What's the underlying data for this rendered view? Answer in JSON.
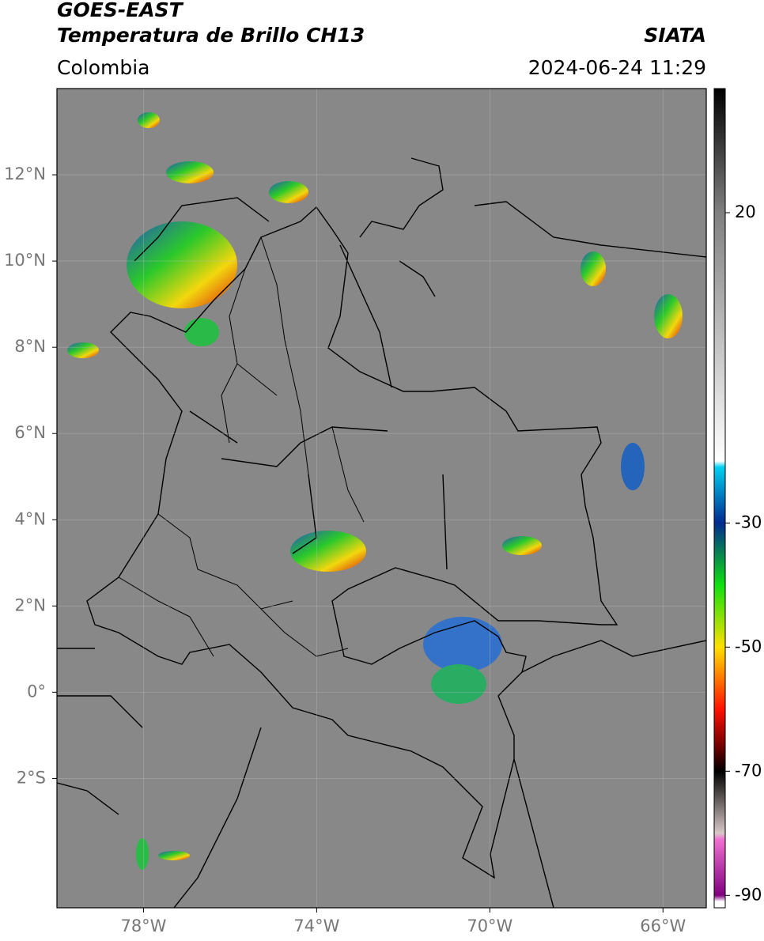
{
  "header": {
    "title": "GOES-EAST",
    "subtitle": "Temperatura de Brillo CH13",
    "region": "Colombia",
    "source": "SIATA",
    "datetime": "2024-06-24 11:29"
  },
  "map": {
    "xlim": [
      -80,
      -65
    ],
    "ylim": [
      -5,
      14
    ],
    "xticks": [
      {
        "value": -78,
        "label": "78°W"
      },
      {
        "value": -74,
        "label": "74°W"
      },
      {
        "value": -70,
        "label": "70°W"
      },
      {
        "value": -66,
        "label": "66°W"
      }
    ],
    "yticks": [
      {
        "value": 12,
        "label": "12°N"
      },
      {
        "value": 10,
        "label": "10°N"
      },
      {
        "value": 8,
        "label": "8°N"
      },
      {
        "value": 6,
        "label": "6°N"
      },
      {
        "value": 4,
        "label": "4°N"
      },
      {
        "value": 2,
        "label": "2°N"
      },
      {
        "value": 0,
        "label": "0°"
      },
      {
        "value": -2,
        "label": "2°S"
      }
    ],
    "grid": true
  },
  "colorbar": {
    "lim": [
      -92,
      40
    ],
    "ticks": [
      20,
      -30,
      -50,
      -70,
      -90
    ],
    "colormap": [
      {
        "value": 40,
        "color": "#000000"
      },
      {
        "value": 20,
        "color": "#808080"
      },
      {
        "value": -20,
        "color": "#ffffff"
      },
      {
        "value": -21,
        "color": "#00d0f0"
      },
      {
        "value": -30,
        "color": "#002a90"
      },
      {
        "value": -40,
        "color": "#10e010"
      },
      {
        "value": -50,
        "color": "#ffe000"
      },
      {
        "value": -60,
        "color": "#ff1000"
      },
      {
        "value": -66,
        "color": "#700000"
      },
      {
        "value": -70,
        "color": "#000000"
      },
      {
        "value": -80,
        "color": "#d8c8c8"
      },
      {
        "value": -81,
        "color": "#f070d0"
      },
      {
        "value": -90,
        "color": "#800080"
      },
      {
        "value": -91,
        "color": "#ffffff"
      }
    ]
  }
}
